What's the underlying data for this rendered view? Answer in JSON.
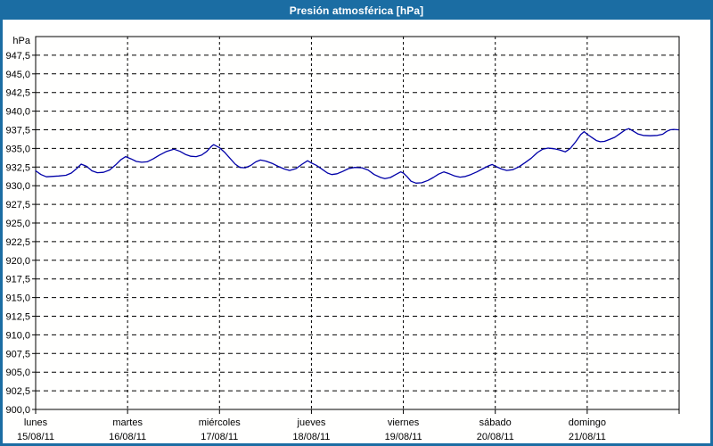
{
  "window": {
    "title": "Presión atmosférica [hPa]"
  },
  "chart_data": {
    "type": "line",
    "title": "Presión atmosférica [hPa]",
    "grid": {
      "horizontal": true,
      "vertical": true,
      "style": "dashed"
    },
    "colors": {
      "titlebar": "#1b6da3",
      "window_border": "#1b6da3",
      "plot_border": "#000000",
      "gridline": "#000000",
      "line": "#0000a8",
      "background": "#fffffe"
    },
    "y_axis": {
      "unit_label": "hPa",
      "min": 900,
      "max": 950,
      "tick_step": 2.5,
      "decimal_separator": ",",
      "tick_labels": [
        "947,5",
        "945,0",
        "942,5",
        "940,0",
        "937,5",
        "935,0",
        "932,5",
        "930,0",
        "927,5",
        "925,0",
        "922,5",
        "920,0",
        "917,5",
        "915,0",
        "912,5",
        "910,0",
        "907,5",
        "905,0",
        "902,5",
        "900,0"
      ]
    },
    "x_axis": {
      "hours_total": 168,
      "days": [
        {
          "name": "lunes",
          "date": "15/08/11"
        },
        {
          "name": "martes",
          "date": "16/08/11"
        },
        {
          "name": "miércoles",
          "date": "17/08/11"
        },
        {
          "name": "jueves",
          "date": "18/08/11"
        },
        {
          "name": "viernes",
          "date": "19/08/11"
        },
        {
          "name": "sábado",
          "date": "20/08/11"
        },
        {
          "name": "domingo",
          "date": "21/08/11"
        }
      ]
    },
    "series": [
      {
        "name": "Presión atmosférica",
        "unit": "hPa",
        "color": "#0000a8",
        "points": [
          [
            0,
            932.0
          ],
          [
            1.4,
            931.5
          ],
          [
            2.8,
            931.2
          ],
          [
            4.2,
            931.25
          ],
          [
            6,
            931.3
          ],
          [
            7.9,
            931.4
          ],
          [
            9.3,
            931.7
          ],
          [
            10.7,
            932.3
          ],
          [
            11.9,
            932.9
          ],
          [
            13.3,
            932.6
          ],
          [
            14.7,
            932.0
          ],
          [
            16.1,
            931.75
          ],
          [
            17.7,
            931.8
          ],
          [
            19.3,
            932.1
          ],
          [
            20.9,
            932.8
          ],
          [
            22.3,
            933.5
          ],
          [
            23.5,
            933.9
          ],
          [
            24.9,
            933.6
          ],
          [
            26.3,
            933.25
          ],
          [
            27.7,
            933.15
          ],
          [
            29.1,
            933.2
          ],
          [
            30.7,
            933.6
          ],
          [
            32.3,
            934.1
          ],
          [
            34.2,
            934.6
          ],
          [
            36.1,
            934.9
          ],
          [
            37.7,
            934.6
          ],
          [
            39.1,
            934.2
          ],
          [
            40.5,
            933.95
          ],
          [
            41.9,
            933.9
          ],
          [
            43.3,
            934.1
          ],
          [
            44.7,
            934.6
          ],
          [
            45.9,
            935.3
          ],
          [
            46.5,
            935.5
          ],
          [
            48,
            935.1
          ],
          [
            49.3,
            934.5
          ],
          [
            50.7,
            933.7
          ],
          [
            52.1,
            932.9
          ],
          [
            53.3,
            932.45
          ],
          [
            54.7,
            932.4
          ],
          [
            56.1,
            932.7
          ],
          [
            57.5,
            933.2
          ],
          [
            58.7,
            933.45
          ],
          [
            60.1,
            933.3
          ],
          [
            61.7,
            933.0
          ],
          [
            63.3,
            932.6
          ],
          [
            64.9,
            932.25
          ],
          [
            66.3,
            932.05
          ],
          [
            68,
            932.3
          ],
          [
            69.6,
            932.9
          ],
          [
            71,
            933.35
          ],
          [
            72,
            933.05
          ],
          [
            73.4,
            932.7
          ],
          [
            74.8,
            932.2
          ],
          [
            76.2,
            931.7
          ],
          [
            77.3,
            931.5
          ],
          [
            78.7,
            931.6
          ],
          [
            80.1,
            931.9
          ],
          [
            81.7,
            932.3
          ],
          [
            83.3,
            932.45
          ],
          [
            85.2,
            932.4
          ],
          [
            86.8,
            932.1
          ],
          [
            88.4,
            931.5
          ],
          [
            90.1,
            931.1
          ],
          [
            91.2,
            930.95
          ],
          [
            92.6,
            931.1
          ],
          [
            94,
            931.5
          ],
          [
            95.3,
            931.85
          ],
          [
            96,
            931.7
          ],
          [
            97,
            931.2
          ],
          [
            98,
            930.6
          ],
          [
            99.3,
            930.35
          ],
          [
            100.8,
            930.4
          ],
          [
            102.4,
            930.7
          ],
          [
            103.8,
            931.1
          ],
          [
            105.2,
            931.55
          ],
          [
            106.6,
            931.85
          ],
          [
            108,
            931.6
          ],
          [
            109.4,
            931.3
          ],
          [
            110.8,
            931.15
          ],
          [
            112.2,
            931.25
          ],
          [
            113.6,
            931.5
          ],
          [
            115.2,
            931.85
          ],
          [
            116.8,
            932.3
          ],
          [
            118.2,
            932.65
          ],
          [
            119.2,
            932.85
          ],
          [
            120.3,
            932.55
          ],
          [
            121.6,
            932.25
          ],
          [
            123,
            932.05
          ],
          [
            124.6,
            932.15
          ],
          [
            126.2,
            932.55
          ],
          [
            127.8,
            933.1
          ],
          [
            129.4,
            933.7
          ],
          [
            131,
            934.45
          ],
          [
            132.4,
            934.9
          ],
          [
            133.8,
            935.05
          ],
          [
            135.4,
            934.95
          ],
          [
            136.8,
            934.8
          ],
          [
            138.3,
            934.55
          ],
          [
            139.6,
            935.0
          ],
          [
            141,
            935.9
          ],
          [
            142.3,
            936.85
          ],
          [
            143.2,
            937.25
          ],
          [
            144.3,
            936.8
          ],
          [
            145.4,
            936.4
          ],
          [
            146.4,
            936.05
          ],
          [
            147.4,
            935.9
          ],
          [
            148.5,
            935.95
          ],
          [
            149.8,
            936.2
          ],
          [
            151.2,
            936.5
          ],
          [
            152.6,
            937.0
          ],
          [
            154,
            937.5
          ],
          [
            154.9,
            937.65
          ],
          [
            156.1,
            937.3
          ],
          [
            157.2,
            936.95
          ],
          [
            158.6,
            936.75
          ],
          [
            160.4,
            936.7
          ],
          [
            162.3,
            936.75
          ],
          [
            163.7,
            936.9
          ],
          [
            164.8,
            937.3
          ],
          [
            165.7,
            937.5
          ],
          [
            166.6,
            937.55
          ],
          [
            167.8,
            937.5
          ]
        ]
      }
    ]
  }
}
